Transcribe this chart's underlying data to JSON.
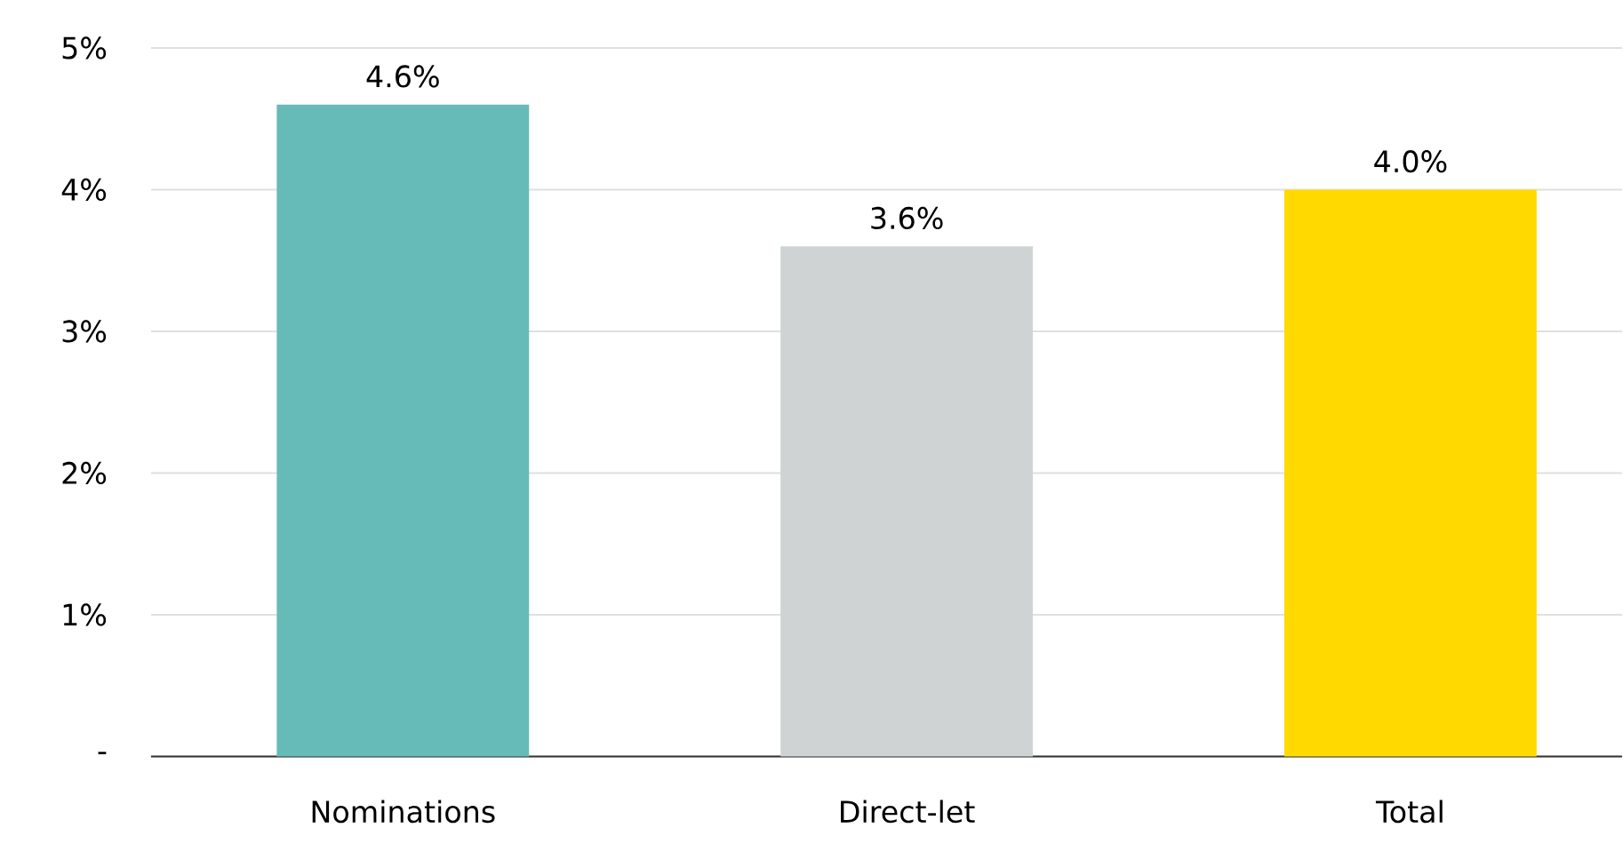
{
  "chart_data": {
    "type": "bar",
    "categories": [
      "Nominations",
      "Direct-let",
      "Total"
    ],
    "values": [
      4.6,
      3.6,
      4.0
    ],
    "colors": [
      "#66bbb8",
      "#d0d3d4",
      "#ffd900"
    ],
    "value_labels": [
      "4.6%",
      "3.6%",
      "4.0%"
    ],
    "ylim": [
      0,
      5
    ],
    "yticks": [
      {
        "value": 0,
        "label": "-"
      },
      {
        "value": 1,
        "label": "1%"
      },
      {
        "value": 2,
        "label": "2%"
      },
      {
        "value": 3,
        "label": "3%"
      },
      {
        "value": 4,
        "label": "4%"
      },
      {
        "value": 5,
        "label": "5%"
      }
    ],
    "grid": "y"
  }
}
